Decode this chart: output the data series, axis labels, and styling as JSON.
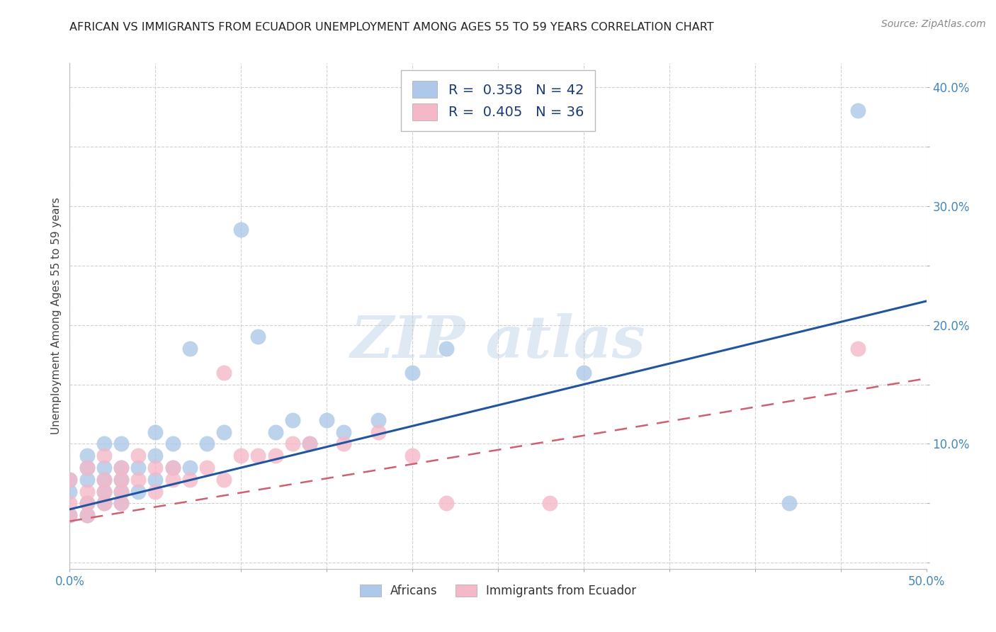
{
  "title": "AFRICAN VS IMMIGRANTS FROM ECUADOR UNEMPLOYMENT AMONG AGES 55 TO 59 YEARS CORRELATION CHART",
  "source": "Source: ZipAtlas.com",
  "ylabel": "Unemployment Among Ages 55 to 59 years",
  "xlim": [
    0.0,
    0.5
  ],
  "ylim": [
    -0.005,
    0.42
  ],
  "xticks": [
    0.0,
    0.05,
    0.1,
    0.15,
    0.2,
    0.25,
    0.3,
    0.35,
    0.4,
    0.45,
    0.5
  ],
  "yticks": [
    0.0,
    0.05,
    0.1,
    0.15,
    0.2,
    0.25,
    0.3,
    0.35,
    0.4
  ],
  "xticklabels": [
    "0.0%",
    "",
    "",
    "",
    "",
    "",
    "",
    "",
    "",
    "",
    "50.0%"
  ],
  "yticklabels": [
    "",
    "",
    "10.0%",
    "",
    "20.0%",
    "",
    "30.0%",
    "",
    "40.0%"
  ],
  "african_R": 0.358,
  "african_N": 42,
  "ecuador_R": 0.405,
  "ecuador_N": 36,
  "african_color": "#adc8e8",
  "ecuador_color": "#f4b8c8",
  "african_line_color": "#2155a0",
  "ecuador_line_color": "#d06070",
  "legend_text_color_R": "#1a3a8a",
  "legend_text_color_N": "#2060c0",
  "background_color": "#ffffff",
  "african_x": [
    0.0,
    0.0,
    0.0,
    0.01,
    0.01,
    0.01,
    0.01,
    0.01,
    0.02,
    0.02,
    0.02,
    0.02,
    0.02,
    0.03,
    0.03,
    0.03,
    0.03,
    0.03,
    0.04,
    0.04,
    0.05,
    0.05,
    0.05,
    0.06,
    0.06,
    0.07,
    0.07,
    0.08,
    0.09,
    0.1,
    0.11,
    0.12,
    0.13,
    0.14,
    0.15,
    0.16,
    0.18,
    0.2,
    0.22,
    0.3,
    0.42,
    0.46
  ],
  "african_y": [
    0.04,
    0.06,
    0.07,
    0.04,
    0.05,
    0.07,
    0.08,
    0.09,
    0.05,
    0.06,
    0.07,
    0.08,
    0.1,
    0.05,
    0.06,
    0.07,
    0.08,
    0.1,
    0.06,
    0.08,
    0.07,
    0.09,
    0.11,
    0.08,
    0.1,
    0.08,
    0.18,
    0.1,
    0.11,
    0.28,
    0.19,
    0.11,
    0.12,
    0.1,
    0.12,
    0.11,
    0.12,
    0.16,
    0.18,
    0.16,
    0.05,
    0.38
  ],
  "ecuador_x": [
    0.0,
    0.0,
    0.0,
    0.01,
    0.01,
    0.01,
    0.01,
    0.02,
    0.02,
    0.02,
    0.02,
    0.03,
    0.03,
    0.03,
    0.03,
    0.04,
    0.04,
    0.05,
    0.05,
    0.06,
    0.06,
    0.07,
    0.08,
    0.09,
    0.09,
    0.1,
    0.11,
    0.12,
    0.13,
    0.14,
    0.16,
    0.18,
    0.2,
    0.22,
    0.28,
    0.46
  ],
  "ecuador_y": [
    0.04,
    0.05,
    0.07,
    0.04,
    0.05,
    0.06,
    0.08,
    0.05,
    0.06,
    0.07,
    0.09,
    0.05,
    0.06,
    0.07,
    0.08,
    0.07,
    0.09,
    0.06,
    0.08,
    0.07,
    0.08,
    0.07,
    0.08,
    0.07,
    0.16,
    0.09,
    0.09,
    0.09,
    0.1,
    0.1,
    0.1,
    0.11,
    0.09,
    0.05,
    0.05,
    0.18
  ],
  "african_line_x0": 0.0,
  "african_line_y0": 0.045,
  "african_line_x1": 0.5,
  "african_line_y1": 0.22,
  "ecuador_line_x0": 0.0,
  "ecuador_line_y0": 0.035,
  "ecuador_line_x1": 0.5,
  "ecuador_line_y1": 0.155
}
